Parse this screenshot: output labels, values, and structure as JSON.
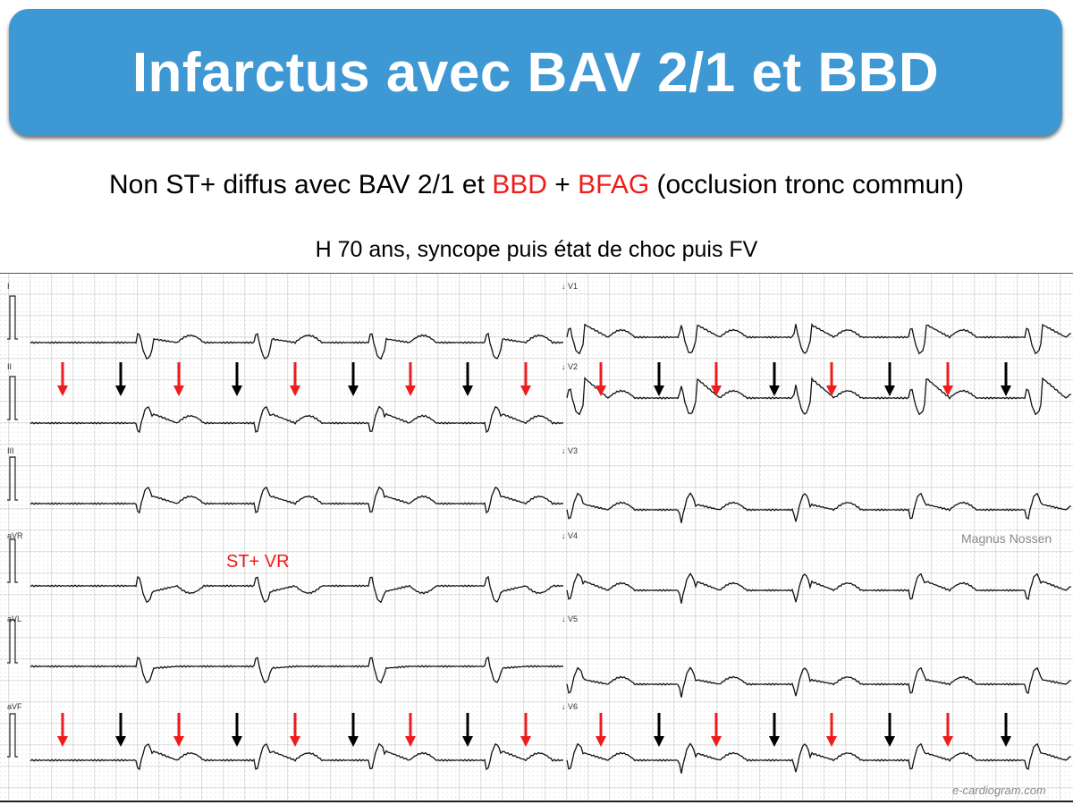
{
  "title": "Infarctus avec BAV 2/1 et BBD",
  "subtitle": {
    "part1": "Non ST+ diffus avec BAV 2/1 et ",
    "bbd": "BBD",
    "plus": " + ",
    "bfag": "BFAG",
    "part2": " (occlusion tronc commun)"
  },
  "caption": "H 70 ans, syncope puis état de choc puis FV",
  "ecg": {
    "leads_left": [
      "I",
      "II",
      "III",
      "aVR",
      "aVL",
      "aVF"
    ],
    "leads_right": [
      "V1",
      "V2",
      "V3",
      "V4",
      "V5",
      "V6"
    ],
    "annotation": "ST+ VR",
    "watermark_author": "Magnus Nossen",
    "watermark_site": "e-cardiogram.com",
    "arrow_colors": {
      "conducted_p": "#ee1c1c",
      "blocked_p": "#000000"
    },
    "arrow_leads": [
      "II",
      "aVF",
      "V2",
      "V6"
    ]
  },
  "colors": {
    "title_bar": "#3e98d4",
    "highlight": "#ee1c1c"
  }
}
